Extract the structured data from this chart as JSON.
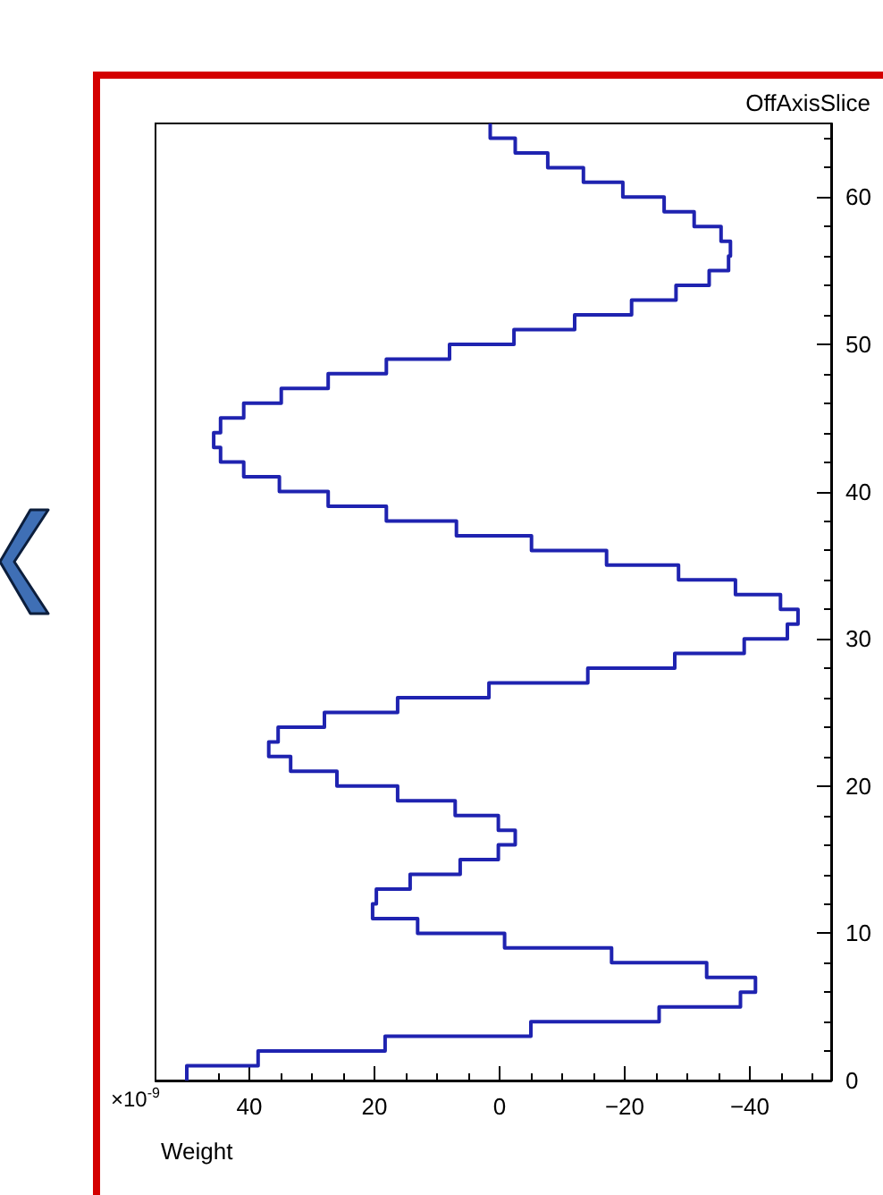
{
  "chart_data": {
    "type": "histogram",
    "orientation": "horizontal",
    "xlabel": "Weight",
    "ylabel": "OffAxisSlice",
    "annotations": [
      "×10$^{-9}$"
    ],
    "bins": [
      0,
      1,
      2,
      3,
      4,
      5,
      6,
      7,
      8,
      9,
      10,
      11,
      12,
      13,
      14,
      15,
      16,
      17,
      18,
      19,
      20,
      21,
      22,
      23,
      24,
      25,
      26,
      27,
      28,
      29,
      30,
      31,
      32,
      33,
      34,
      35,
      36,
      37,
      38,
      39,
      40,
      41,
      42,
      43,
      44,
      45,
      46,
      47,
      48,
      49,
      50,
      51,
      52,
      53,
      54,
      55,
      56,
      57,
      58,
      59,
      60,
      61,
      62,
      63,
      64,
      65
    ],
    "values": [
      50,
      38.6,
      18.3,
      -5,
      -25.5,
      -38.5,
      -40.9,
      -33.1,
      -17.9,
      -0.8,
      13.1,
      20.3,
      19.7,
      14.3,
      6.3,
      0.2,
      -2.5,
      0.2,
      7.1,
      16.3,
      26,
      33.4,
      36.9,
      35.4,
      28,
      16.3,
      1.7,
      -14.1,
      -28,
      -39.1,
      -46,
      -47.7,
      -44.9,
      -37.7,
      -28.6,
      -17.1,
      -5.1,
      6.9,
      18.1,
      27.4,
      35.2,
      40.9,
      44.6,
      45.7,
      44.6,
      40.9,
      34.9,
      27.4,
      18.1,
      8,
      -2.3,
      -12,
      -21.1,
      -28.2,
      -33.5,
      -36.6,
      -36.9,
      -35.4,
      -31.1,
      -26.3,
      -19.7,
      -13.4,
      -7.7,
      -2.5,
      1.5
    ],
    "color": "#1f23b0",
    "xlim": [
      55,
      -53
    ],
    "xticks": [
      40,
      20,
      0,
      -20,
      -40
    ],
    "ylim": [
      0,
      65
    ],
    "yticks": [
      0,
      10,
      20,
      30,
      40,
      50,
      60
    ],
    "grid": false
  }
}
